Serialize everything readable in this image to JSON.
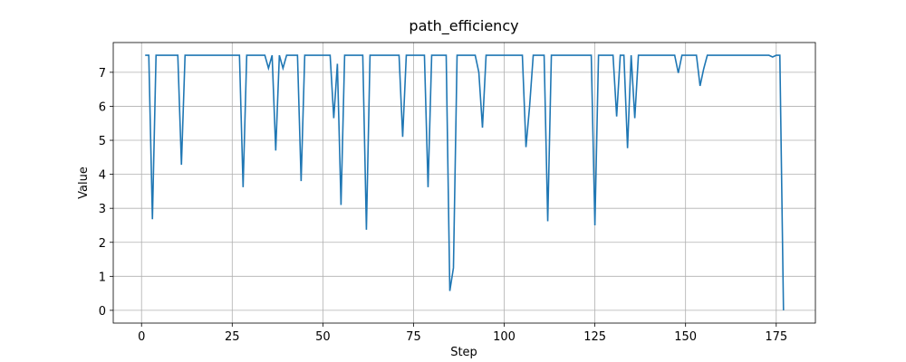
{
  "chart_data": {
    "type": "line",
    "title": "path_efficiency",
    "x_label": "Step",
    "y_label": "Value",
    "x": [
      1,
      2,
      3,
      4,
      5,
      6,
      7,
      8,
      9,
      10,
      11,
      12,
      13,
      14,
      15,
      16,
      17,
      18,
      19,
      20,
      21,
      22,
      23,
      24,
      25,
      26,
      27,
      28,
      29,
      30,
      31,
      32,
      33,
      34,
      35,
      36,
      37,
      38,
      39,
      40,
      41,
      42,
      43,
      44,
      45,
      46,
      47,
      48,
      49,
      50,
      51,
      52,
      53,
      54,
      55,
      56,
      57,
      58,
      59,
      60,
      61,
      62,
      63,
      64,
      65,
      66,
      67,
      68,
      69,
      70,
      71,
      72,
      73,
      74,
      75,
      76,
      77,
      78,
      79,
      80,
      81,
      82,
      83,
      84,
      85,
      86,
      87,
      88,
      89,
      90,
      91,
      92,
      93,
      94,
      95,
      96,
      97,
      98,
      99,
      100,
      101,
      102,
      103,
      104,
      105,
      106,
      107,
      108,
      109,
      110,
      111,
      112,
      113,
      114,
      115,
      116,
      117,
      118,
      119,
      120,
      121,
      122,
      123,
      124,
      125,
      126,
      127,
      128,
      129,
      130,
      131,
      132,
      133,
      134,
      135,
      136,
      137,
      138,
      139,
      140,
      141,
      142,
      143,
      144,
      145,
      146,
      147,
      148,
      149,
      150,
      151,
      152,
      153,
      154,
      155,
      156,
      157,
      158,
      159,
      160,
      161,
      162,
      163,
      164,
      165,
      166,
      167,
      168,
      169,
      170,
      171,
      172,
      173,
      174,
      175,
      176,
      177
    ],
    "series": [
      {
        "name": "path_efficiency",
        "color": "#1f77b4",
        "values": [
          7.5,
          7.5,
          2.68,
          7.5,
          7.5,
          7.5,
          7.5,
          7.5,
          7.5,
          7.5,
          4.28,
          7.5,
          7.5,
          7.5,
          7.5,
          7.5,
          7.5,
          7.5,
          7.5,
          7.5,
          7.5,
          7.5,
          7.5,
          7.5,
          7.5,
          7.5,
          7.5,
          3.62,
          7.5,
          7.5,
          7.5,
          7.5,
          7.5,
          7.5,
          7.12,
          7.5,
          4.7,
          7.5,
          7.12,
          7.5,
          7.5,
          7.5,
          7.5,
          3.8,
          7.5,
          7.5,
          7.5,
          7.5,
          7.5,
          7.5,
          7.5,
          7.5,
          5.65,
          7.25,
          3.1,
          7.5,
          7.5,
          7.5,
          7.5,
          7.5,
          7.5,
          2.37,
          7.5,
          7.5,
          7.5,
          7.5,
          7.5,
          7.5,
          7.5,
          7.5,
          7.5,
          5.1,
          7.5,
          7.5,
          7.5,
          7.5,
          7.5,
          7.5,
          3.62,
          7.5,
          7.5,
          7.5,
          7.5,
          7.5,
          0.57,
          1.25,
          7.5,
          7.5,
          7.5,
          7.5,
          7.5,
          7.5,
          7.0,
          5.37,
          7.5,
          7.5,
          7.5,
          7.5,
          7.5,
          7.5,
          7.5,
          7.5,
          7.5,
          7.5,
          7.5,
          4.8,
          6.0,
          7.5,
          7.5,
          7.5,
          7.5,
          2.62,
          7.5,
          7.5,
          7.5,
          7.5,
          7.5,
          7.5,
          7.5,
          7.5,
          7.5,
          7.5,
          7.5,
          7.5,
          2.5,
          7.5,
          7.5,
          7.5,
          7.5,
          7.5,
          5.7,
          7.5,
          7.5,
          4.77,
          7.5,
          5.65,
          7.5,
          7.5,
          7.5,
          7.5,
          7.5,
          7.5,
          7.5,
          7.5,
          7.5,
          7.5,
          7.5,
          6.98,
          7.5,
          7.5,
          7.5,
          7.5,
          7.5,
          6.6,
          7.1,
          7.5,
          7.5,
          7.5,
          7.5,
          7.5,
          7.5,
          7.5,
          7.5,
          7.5,
          7.5,
          7.5,
          7.5,
          7.5,
          7.5,
          7.5,
          7.5,
          7.5,
          7.5,
          7.45,
          7.5,
          7.5,
          0
        ]
      }
    ],
    "xlim": [
      -7.8,
      185.8
    ],
    "xticks": [
      0,
      25,
      50,
      75,
      100,
      125,
      150,
      175
    ],
    "ylim": [
      -0.375,
      7.875
    ],
    "yticks": [
      0,
      1,
      2,
      3,
      4,
      5,
      6,
      7
    ],
    "grid": true
  }
}
